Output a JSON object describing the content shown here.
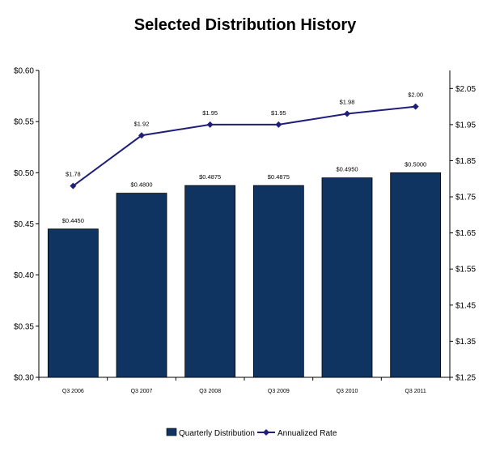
{
  "chart_data": {
    "type": "bar+line",
    "title": "Selected Distribution History",
    "categories": [
      "Q3 2006",
      "Q3 2007",
      "Q3 2008",
      "Q3 2009",
      "Q3 2010",
      "Q3 2011"
    ],
    "series": [
      {
        "name": "Quarterly Distribution",
        "type": "bar",
        "axis": "left",
        "color": "#0f3461",
        "values": [
          0.445,
          0.48,
          0.4875,
          0.4875,
          0.495,
          0.5
        ],
        "labels": [
          "$0.4450",
          "$0.4800",
          "$0.4875",
          "$0.4875",
          "$0.4950",
          "$0.5000"
        ]
      },
      {
        "name": "Annualized Rate",
        "type": "line",
        "axis": "right",
        "color": "#1f1f7a",
        "values": [
          1.78,
          1.92,
          1.95,
          1.95,
          1.98,
          2.0
        ],
        "labels": [
          "$1.78",
          "$1.92",
          "$1.95",
          "$1.95",
          "$1.98",
          "$2.00"
        ]
      }
    ],
    "y_left": {
      "ylim": [
        0.3,
        0.6
      ],
      "ticks": [
        "$0.30",
        "$0.35",
        "$0.40",
        "$0.45",
        "$0.50",
        "$0.55",
        "$0.60"
      ],
      "tick_values": [
        0.3,
        0.35,
        0.4,
        0.45,
        0.5,
        0.55,
        0.6
      ]
    },
    "y_right": {
      "ylim": [
        1.25,
        2.1
      ],
      "ticks": [
        "$1.25",
        "$1.35",
        "$1.45",
        "$1.55",
        "$1.65",
        "$1.75",
        "$1.85",
        "$1.95",
        "$2.05"
      ],
      "tick_values": [
        1.25,
        1.35,
        1.45,
        1.55,
        1.65,
        1.75,
        1.85,
        1.95,
        2.05
      ]
    },
    "grid": false,
    "legend": "bottom-center"
  }
}
